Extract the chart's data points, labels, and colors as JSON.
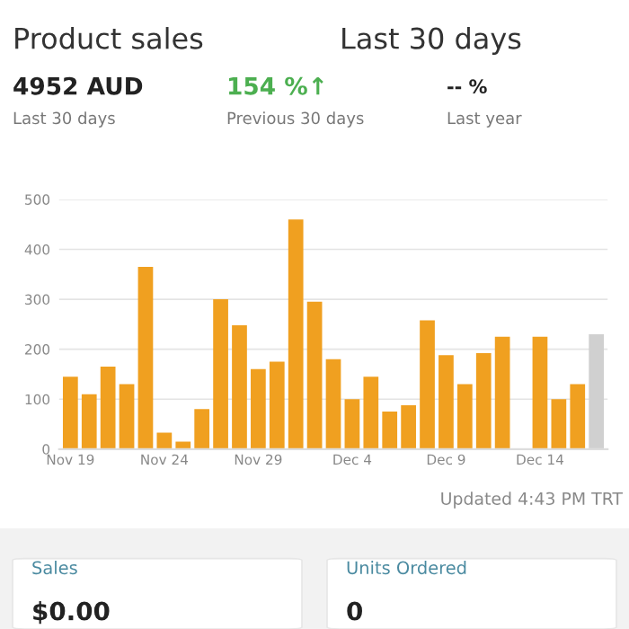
{
  "chart_data": {
    "type": "bar",
    "title": "Product sales",
    "categories": [
      "Nov 19",
      null,
      null,
      null,
      null,
      "Nov 24",
      null,
      null,
      null,
      null,
      "Nov 29",
      null,
      null,
      null,
      null,
      "Dec 4",
      null,
      null,
      null,
      null,
      "Dec 9",
      null,
      null,
      null,
      null,
      "Dec 14",
      null,
      null,
      null
    ],
    "values": [
      145,
      110,
      165,
      130,
      365,
      33,
      15,
      80,
      300,
      248,
      160,
      175,
      460,
      295,
      180,
      100,
      145,
      75,
      88,
      258,
      188,
      130,
      192,
      225,
      0,
      225,
      100,
      130,
      230
    ],
    "colors": [
      "#f0a020",
      "#f0a020",
      "#f0a020",
      "#f0a020",
      "#f0a020",
      "#f0a020",
      "#f0a020",
      "#f0a020",
      "#f0a020",
      "#f0a020",
      "#f0a020",
      "#f0a020",
      "#f0a020",
      "#f0a020",
      "#f0a020",
      "#f0a020",
      "#f0a020",
      "#f0a020",
      "#f0a020",
      "#f0a020",
      "#f0a020",
      "#f0a020",
      "#f0a020",
      "#f0a020",
      "#f0a020",
      "#f0a020",
      "#f0a020",
      "#f0a020",
      "#d0d0d0"
    ],
    "ylim": [
      0,
      500
    ],
    "yticks": [
      0,
      100,
      200,
      300,
      400,
      500
    ],
    "grid": "y",
    "annotations": [
      "Last 30 days",
      "4952 AUD",
      "Last 30 days",
      "154 %↑",
      "Previous 30 days",
      "-- %",
      "Last year",
      "Updated 4:43 PM TRT",
      "Sales",
      "$0.00",
      "Units Ordered",
      "0"
    ]
  }
}
